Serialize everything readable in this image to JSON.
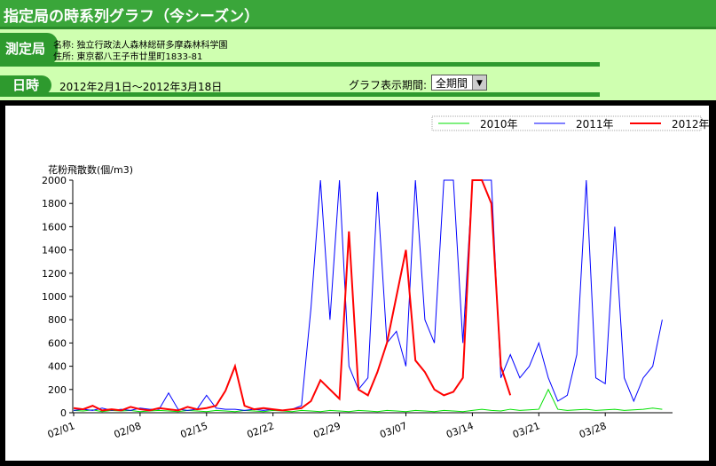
{
  "title": "指定局の時系列グラフ（今シーズン）",
  "station": {
    "label": "測定局",
    "name": "名称: 独立行政法人森林総研多摩森林科学園",
    "address": "住所: 東京都八王子市廿里町1833-81"
  },
  "datetime": {
    "label": "日時",
    "range": "2012年2月1日～2012年3月18日",
    "period_label": "グラフ表示期間:",
    "period_value": "全期間"
  },
  "chart_data": {
    "type": "line",
    "ylabel": "花粉飛散数(個/m3)",
    "ylim": [
      0,
      2000
    ],
    "yticks": [
      0,
      200,
      400,
      600,
      800,
      1000,
      1200,
      1400,
      1600,
      1800,
      2000
    ],
    "xticks": [
      "02/01",
      "02/08",
      "02/15",
      "02/22",
      "02/29",
      "03/07",
      "03/14",
      "03/21",
      "03/28"
    ],
    "x_start": "02/01",
    "x_step_days": 1,
    "legend": "top-right",
    "series": [
      {
        "name": "2010年",
        "color": "#00e000",
        "values": [
          20,
          15,
          25,
          10,
          20,
          15,
          20,
          10,
          15,
          20,
          15,
          10,
          20,
          15,
          10,
          20,
          15,
          10,
          20,
          15,
          10,
          20,
          15,
          10,
          20,
          15,
          10,
          20,
          15,
          10,
          20,
          15,
          10,
          20,
          15,
          10,
          20,
          15,
          10,
          20,
          15,
          10,
          20,
          30,
          20,
          15,
          30,
          20,
          25,
          30,
          200,
          30,
          20,
          25,
          30,
          20,
          25,
          30,
          20,
          25,
          30,
          40,
          30
        ]
      },
      {
        "name": "2011年",
        "color": "#0000ff",
        "values": [
          20,
          30,
          20,
          40,
          20,
          30,
          20,
          40,
          30,
          30,
          170,
          30,
          20,
          30,
          150,
          40,
          30,
          30,
          20,
          30,
          20,
          30,
          20,
          30,
          60,
          900,
          2000,
          800,
          2000,
          400,
          200,
          300,
          1900,
          600,
          700,
          400,
          2000,
          800,
          600,
          2000,
          2000,
          600,
          2000,
          2000,
          2000,
          300,
          500,
          300,
          400,
          600,
          300,
          100,
          150,
          500,
          2000,
          300,
          250,
          1600,
          300,
          100,
          300,
          400,
          800
        ]
      },
      {
        "name": "2012年",
        "color": "#ff0000",
        "values": [
          40,
          30,
          60,
          20,
          30,
          20,
          50,
          30,
          20,
          40,
          30,
          20,
          50,
          30,
          40,
          60,
          190,
          400,
          60,
          30,
          40,
          30,
          20,
          30,
          40,
          100,
          280,
          200,
          120,
          1560,
          200,
          150,
          350,
          600,
          1000,
          1400,
          450,
          350,
          200,
          150,
          180,
          300,
          2000,
          2000,
          1800,
          400,
          150
        ]
      }
    ]
  }
}
